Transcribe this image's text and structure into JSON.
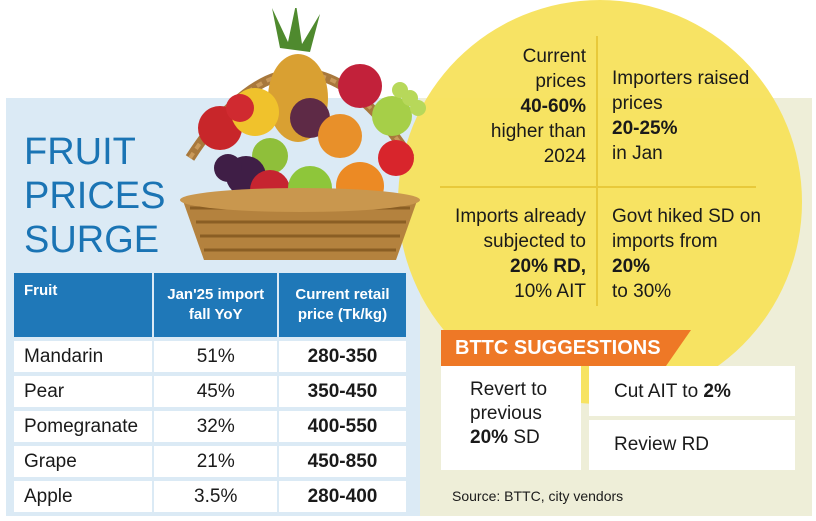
{
  "title": [
    "FRUIT",
    "PRICES",
    "SURGE"
  ],
  "table": {
    "headers": [
      "Fruit",
      "Jan'25 import fall YoY",
      "Current retail price (Tk/kg)"
    ],
    "rows": [
      {
        "fruit": "Mandarin",
        "fall": "51%",
        "price": "280-350"
      },
      {
        "fruit": "Pear",
        "fall": "45%",
        "price": "350-450"
      },
      {
        "fruit": "Pomegranate",
        "fall": "32%",
        "price": "400-550"
      },
      {
        "fruit": "Grape",
        "fall": "21%",
        "price": "450-850"
      },
      {
        "fruit": "Apple",
        "fall": "3.5%",
        "price": "280-400"
      }
    ]
  },
  "facts": {
    "q1": {
      "pre": "Current prices",
      "bold": "40-60%",
      "post": "higher than 2024"
    },
    "q2": {
      "pre": "Importers raised prices",
      "bold": "20-25%",
      "post": "in Jan"
    },
    "q3": {
      "pre": "Imports already subjected to",
      "bold": "20% RD,",
      "post": "10% AIT"
    },
    "q4": {
      "pre": "Govt hiked SD on imports from",
      "bold": "20%",
      "post": "to 30%"
    }
  },
  "suggestions": {
    "heading": "BTTC SUGGESTIONS",
    "s1_pre": "Revert to previous",
    "s1_bold": "20%",
    "s1_post": "SD",
    "s2_pre": "Cut AIT to",
    "s2_bold": "2%",
    "s3": "Review RD"
  },
  "source": "Source: BTTC, city vendors",
  "colors": {
    "accent_blue": "#1f78b8",
    "title_blue": "#1a74b4",
    "yellow": "#f7e15c",
    "orange": "#ee7826"
  },
  "illustration": "fruit-basket"
}
